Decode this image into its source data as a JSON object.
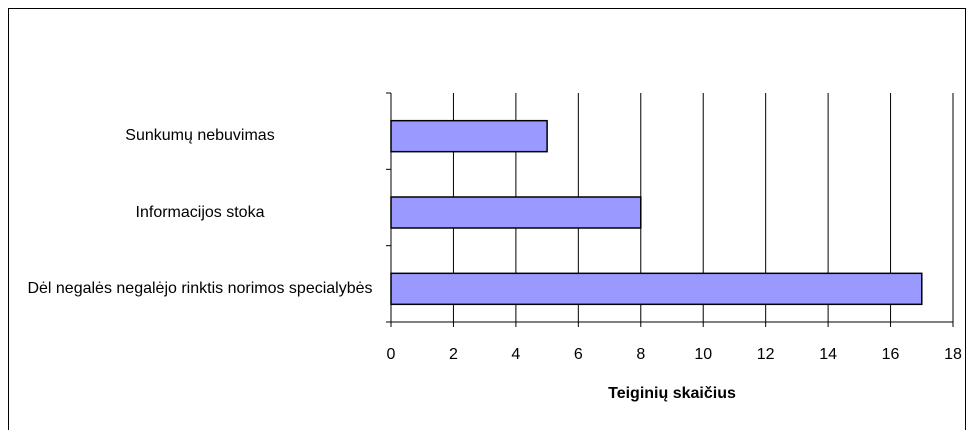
{
  "chart_data": {
    "type": "bar",
    "orientation": "horizontal",
    "x_label": "Teiginių skaičius",
    "categories": [
      "Sunkumų nebuvimas",
      "Informacijos stoka",
      "Dėl negalės negalėjo rinktis norimos specialybės"
    ],
    "values": [
      5,
      8,
      17
    ],
    "color": "#9999ff",
    "xlim": [
      0,
      18
    ],
    "xticks": [
      0,
      2,
      4,
      6,
      8,
      10,
      12,
      14,
      16,
      18
    ],
    "grid": true
  }
}
